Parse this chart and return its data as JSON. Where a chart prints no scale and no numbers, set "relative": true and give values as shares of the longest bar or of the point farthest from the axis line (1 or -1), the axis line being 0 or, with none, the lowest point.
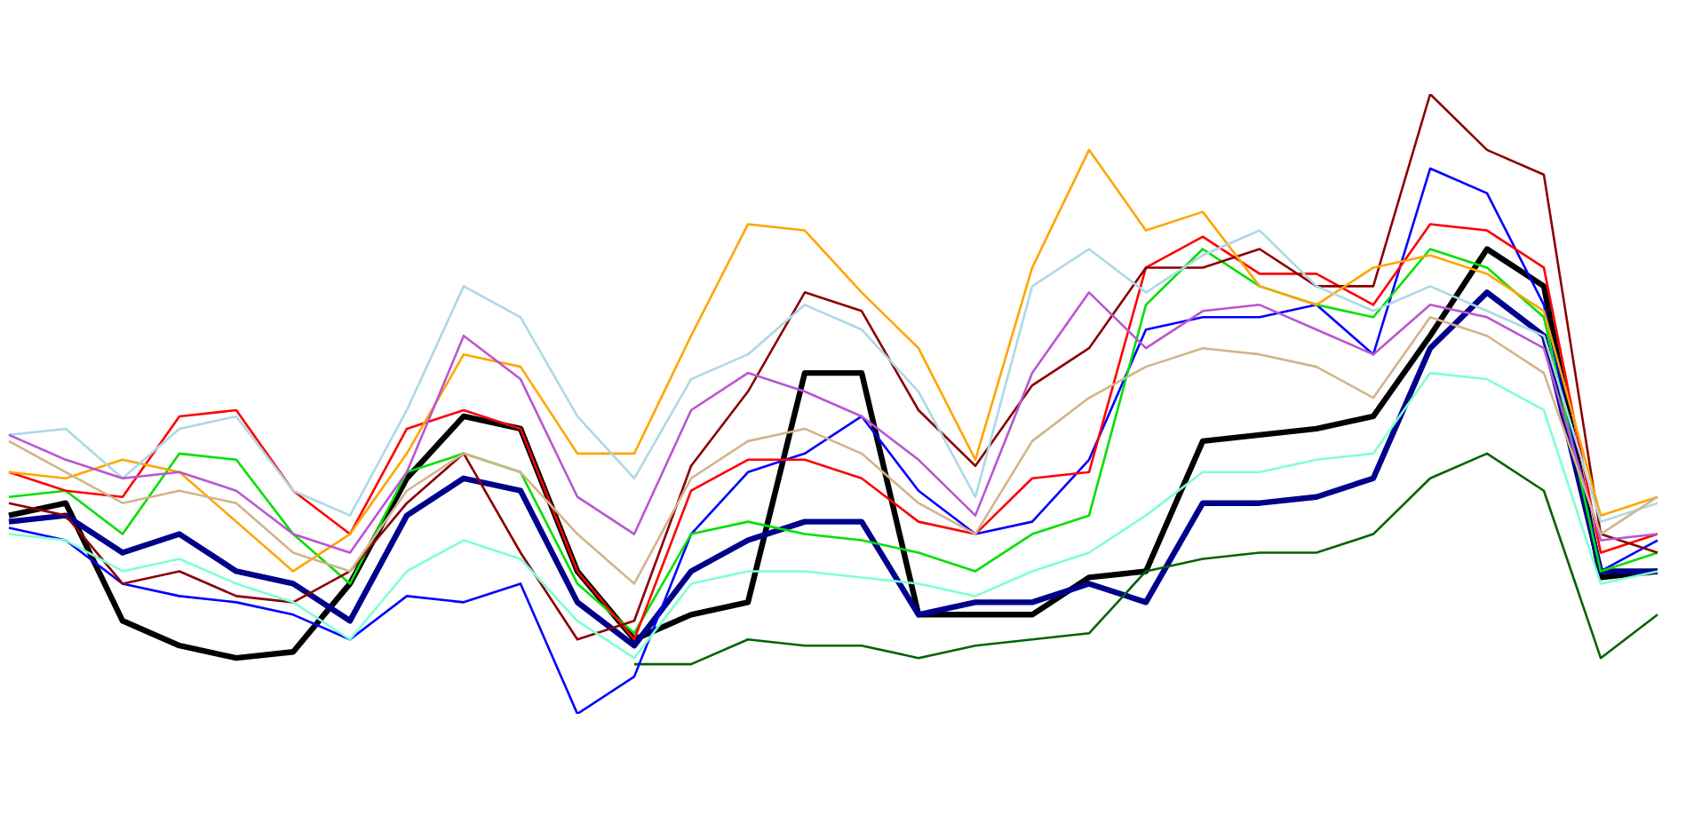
{
  "chart_data": {
    "type": "line",
    "relative": true,
    "legend": false,
    "marker": "none",
    "line_style": "solid",
    "categories": [
      null,
      null,
      null,
      null,
      null,
      null,
      null,
      null,
      null,
      null,
      null,
      null,
      null,
      null,
      null,
      null,
      null,
      null,
      null,
      null,
      null,
      null,
      null,
      null,
      null,
      null,
      null,
      null,
      null,
      null
    ],
    "series": [
      {
        "color": "#7fffd4",
        "values": [
          0.29,
          0.28,
          0.23,
          0.25,
          0.21,
          0.18,
          0.12,
          0.23,
          0.28,
          0.25,
          0.15,
          0.09,
          0.21,
          0.23,
          0.23,
          0.22,
          0.21,
          0.19,
          0.23,
          0.26,
          0.32,
          0.39,
          0.39,
          0.41,
          0.42,
          0.55,
          0.54,
          0.49,
          0.21,
          0.23
        ]
      },
      {
        "color": "#d2b48c",
        "values": [
          0.44,
          0.39,
          0.34,
          0.36,
          0.34,
          0.26,
          0.23,
          0.36,
          0.42,
          0.39,
          0.29,
          0.21,
          0.38,
          0.44,
          0.46,
          0.42,
          0.34,
          0.29,
          0.44,
          0.51,
          0.56,
          0.59,
          0.58,
          0.56,
          0.51,
          0.64,
          0.61,
          0.55,
          0.29,
          0.35
        ]
      },
      {
        "color": "#ba55d3",
        "values": [
          0.45,
          0.41,
          0.38,
          0.39,
          0.36,
          0.29,
          0.26,
          0.39,
          0.61,
          0.54,
          0.35,
          0.29,
          0.49,
          0.55,
          0.52,
          0.48,
          0.41,
          0.32,
          0.55,
          0.68,
          0.59,
          0.65,
          0.66,
          0.62,
          0.58,
          0.66,
          0.64,
          0.59,
          0.28,
          0.29
        ]
      },
      {
        "color": "#add8e6",
        "values": [
          0.45,
          0.46,
          0.38,
          0.46,
          0.48,
          0.36,
          0.32,
          0.49,
          0.69,
          0.64,
          0.48,
          0.38,
          0.54,
          0.58,
          0.66,
          0.62,
          0.52,
          0.35,
          0.69,
          0.75,
          0.68,
          0.74,
          0.78,
          0.69,
          0.65,
          0.69,
          0.65,
          0.61,
          0.31,
          0.34
        ]
      },
      {
        "color": "#ffa500",
        "values": [
          0.39,
          0.38,
          0.41,
          0.39,
          0.31,
          0.23,
          0.29,
          0.42,
          0.58,
          0.56,
          0.42,
          0.42,
          0.61,
          0.79,
          0.78,
          0.68,
          0.59,
          0.41,
          0.72,
          0.91,
          0.78,
          0.81,
          0.69,
          0.66,
          0.72,
          0.74,
          0.71,
          0.65,
          0.32,
          0.35
        ]
      },
      {
        "color": "#8b0000",
        "values": [
          0.34,
          0.32,
          0.21,
          0.23,
          0.19,
          0.18,
          0.23,
          0.34,
          0.42,
          0.26,
          0.12,
          0.15,
          0.4,
          0.52,
          0.68,
          0.65,
          0.49,
          0.4,
          0.53,
          0.59,
          0.72,
          0.72,
          0.75,
          0.69,
          0.69,
          1,
          0.91,
          0.87,
          0.29,
          0.26
        ]
      },
      {
        "color": "#ff0000",
        "values": [
          0.39,
          0.36,
          0.35,
          0.48,
          0.49,
          0.36,
          0.29,
          0.46,
          0.49,
          0.46,
          0.23,
          0.12,
          0.36,
          0.41,
          0.41,
          0.38,
          0.31,
          0.29,
          0.38,
          0.39,
          0.72,
          0.77,
          0.71,
          0.71,
          0.66,
          0.79,
          0.78,
          0.72,
          0.26,
          0.29
        ]
      },
      {
        "color": "#00e000",
        "values": [
          0.35,
          0.36,
          0.29,
          0.42,
          0.41,
          0.29,
          0.21,
          0.39,
          0.42,
          0.39,
          0.21,
          0.13,
          0.29,
          0.31,
          0.29,
          0.28,
          0.26,
          0.23,
          0.29,
          0.32,
          0.66,
          0.75,
          0.69,
          0.66,
          0.64,
          0.75,
          0.72,
          0.64,
          0.23,
          0.26
        ]
      },
      {
        "color": "#0000ff",
        "values": [
          0.3,
          0.28,
          0.21,
          0.19,
          0.18,
          0.16,
          0.12,
          0.19,
          0.18,
          0.21,
          0,
          0.06,
          0.29,
          0.39,
          0.42,
          0.48,
          0.36,
          0.29,
          0.31,
          0.41,
          0.62,
          0.64,
          0.64,
          0.66,
          0.58,
          0.88,
          0.84,
          0.66,
          0.23,
          0.28
        ]
      },
      {
        "color": "#006400",
        "values": [
          null,
          null,
          null,
          null,
          null,
          null,
          null,
          null,
          null,
          null,
          null,
          0.08,
          0.08,
          0.12,
          0.11,
          0.11,
          0.09,
          0.11,
          0.12,
          0.13,
          0.23,
          0.25,
          0.26,
          0.26,
          0.29,
          0.38,
          0.42,
          0.36,
          0.09,
          0.16
        ]
      },
      {
        "color": "#00008b",
        "values": [
          0.31,
          0.32,
          0.26,
          0.29,
          0.23,
          0.21,
          0.15,
          0.32,
          0.38,
          0.36,
          0.18,
          0.11,
          0.23,
          0.28,
          0.31,
          0.31,
          0.16,
          0.18,
          0.18,
          0.21,
          0.18,
          0.34,
          0.34,
          0.35,
          0.38,
          0.59,
          0.68,
          0.61,
          0.23,
          0.23
        ]
      },
      {
        "color": "#000000",
        "values": [
          0.32,
          0.34,
          0.15,
          0.11,
          0.09,
          0.1,
          0.21,
          0.38,
          0.48,
          0.46,
          0.23,
          0.12,
          0.16,
          0.18,
          0.55,
          0.55,
          0.16,
          0.16,
          0.16,
          0.22,
          0.23,
          0.44,
          0.45,
          0.46,
          0.48,
          0.61,
          0.75,
          0.69,
          0.22,
          0.23
        ]
      }
    ]
  }
}
